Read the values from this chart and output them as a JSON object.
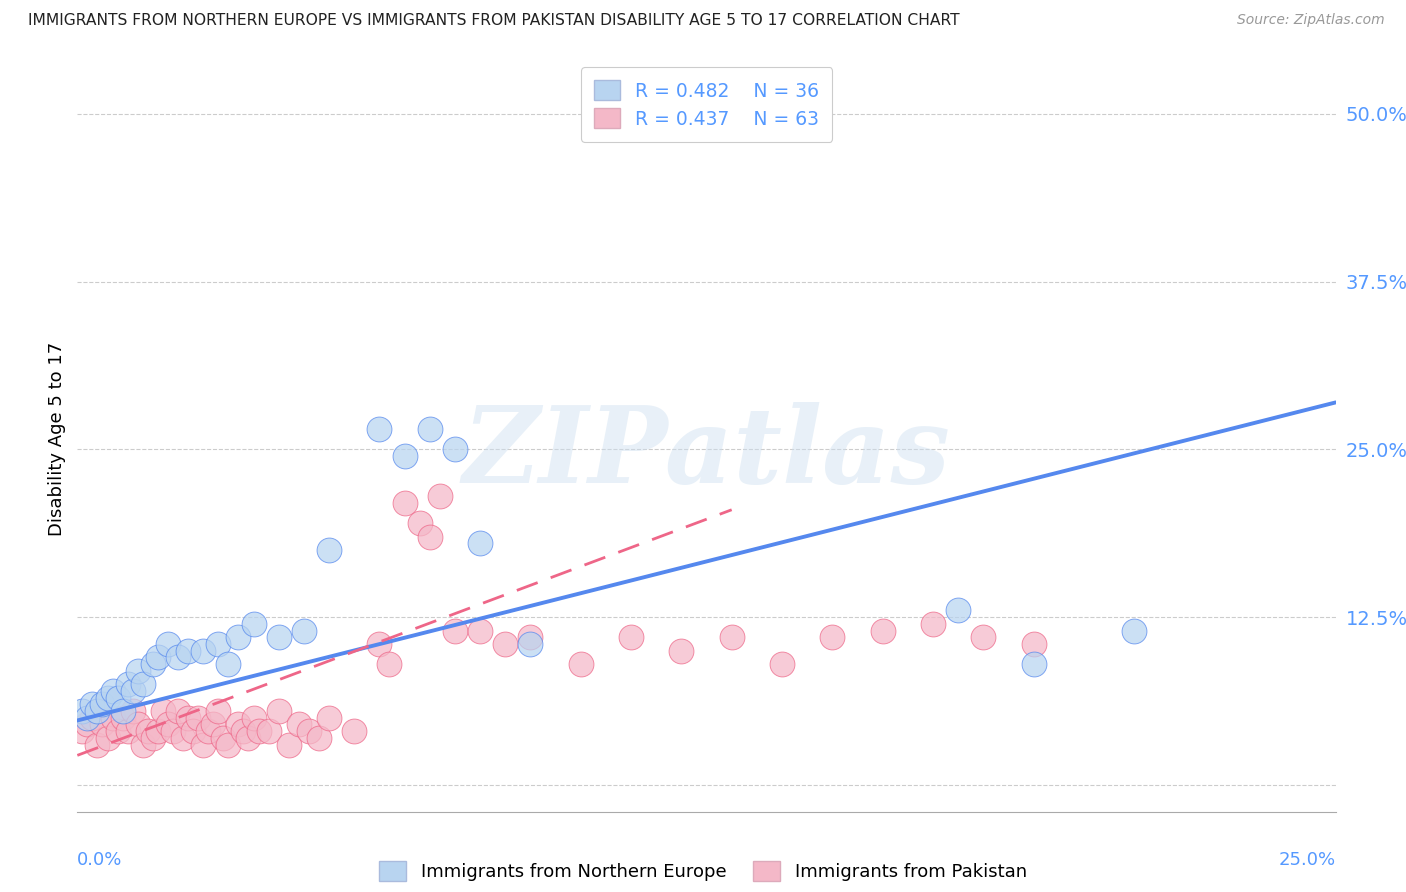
{
  "title": "IMMIGRANTS FROM NORTHERN EUROPE VS IMMIGRANTS FROM PAKISTAN DISABILITY AGE 5 TO 17 CORRELATION CHART",
  "source": "Source: ZipAtlas.com",
  "ylabel": "Disability Age 5 to 17",
  "legend_label1": "Immigrants from Northern Europe",
  "legend_label2": "Immigrants from Pakistan",
  "watermark": "ZIPatlas",
  "yticks": [
    0.0,
    0.125,
    0.25,
    0.375,
    0.5
  ],
  "ytick_labels": [
    "",
    "12.5%",
    "25.0%",
    "37.5%",
    "50.0%"
  ],
  "xlim": [
    0.0,
    0.25
  ],
  "ylim": [
    -0.02,
    0.535
  ],
  "color_blue": "#b8d4f0",
  "color_pink": "#f4b8c8",
  "line_blue": "#5588ee",
  "line_pink": "#ee6688",
  "tick_color": "#5599ff",
  "blue_scatter_x": [
    0.001,
    0.002,
    0.003,
    0.004,
    0.005,
    0.006,
    0.007,
    0.008,
    0.009,
    0.01,
    0.011,
    0.012,
    0.013,
    0.015,
    0.016,
    0.018,
    0.02,
    0.022,
    0.025,
    0.028,
    0.03,
    0.032,
    0.035,
    0.04,
    0.045,
    0.05,
    0.06,
    0.065,
    0.07,
    0.075,
    0.08,
    0.09,
    0.12,
    0.175,
    0.19,
    0.21
  ],
  "blue_scatter_y": [
    0.055,
    0.05,
    0.06,
    0.055,
    0.06,
    0.065,
    0.07,
    0.065,
    0.055,
    0.075,
    0.07,
    0.085,
    0.075,
    0.09,
    0.095,
    0.105,
    0.095,
    0.1,
    0.1,
    0.105,
    0.09,
    0.11,
    0.12,
    0.11,
    0.115,
    0.175,
    0.265,
    0.245,
    0.265,
    0.25,
    0.18,
    0.105,
    0.49,
    0.13,
    0.09,
    0.115
  ],
  "pink_scatter_x": [
    0.001,
    0.002,
    0.003,
    0.004,
    0.005,
    0.006,
    0.007,
    0.008,
    0.009,
    0.01,
    0.011,
    0.012,
    0.013,
    0.014,
    0.015,
    0.016,
    0.017,
    0.018,
    0.019,
    0.02,
    0.021,
    0.022,
    0.023,
    0.024,
    0.025,
    0.026,
    0.027,
    0.028,
    0.029,
    0.03,
    0.032,
    0.033,
    0.034,
    0.035,
    0.036,
    0.038,
    0.04,
    0.042,
    0.044,
    0.046,
    0.048,
    0.05,
    0.055,
    0.06,
    0.062,
    0.065,
    0.068,
    0.07,
    0.072,
    0.075,
    0.08,
    0.085,
    0.09,
    0.1,
    0.11,
    0.12,
    0.13,
    0.14,
    0.15,
    0.16,
    0.17,
    0.18,
    0.19
  ],
  "pink_scatter_y": [
    0.04,
    0.045,
    0.05,
    0.03,
    0.045,
    0.035,
    0.05,
    0.04,
    0.05,
    0.04,
    0.055,
    0.045,
    0.03,
    0.04,
    0.035,
    0.04,
    0.055,
    0.045,
    0.04,
    0.055,
    0.035,
    0.05,
    0.04,
    0.05,
    0.03,
    0.04,
    0.045,
    0.055,
    0.035,
    0.03,
    0.045,
    0.04,
    0.035,
    0.05,
    0.04,
    0.04,
    0.055,
    0.03,
    0.045,
    0.04,
    0.035,
    0.05,
    0.04,
    0.105,
    0.09,
    0.21,
    0.195,
    0.185,
    0.215,
    0.115,
    0.115,
    0.105,
    0.11,
    0.09,
    0.11,
    0.1,
    0.11,
    0.09,
    0.11,
    0.115,
    0.12,
    0.11,
    0.105
  ],
  "blue_line_x": [
    0.0,
    0.25
  ],
  "blue_line_y": [
    0.048,
    0.285
  ],
  "pink_line_x": [
    0.0,
    0.13
  ],
  "pink_line_y": [
    0.022,
    0.205
  ]
}
